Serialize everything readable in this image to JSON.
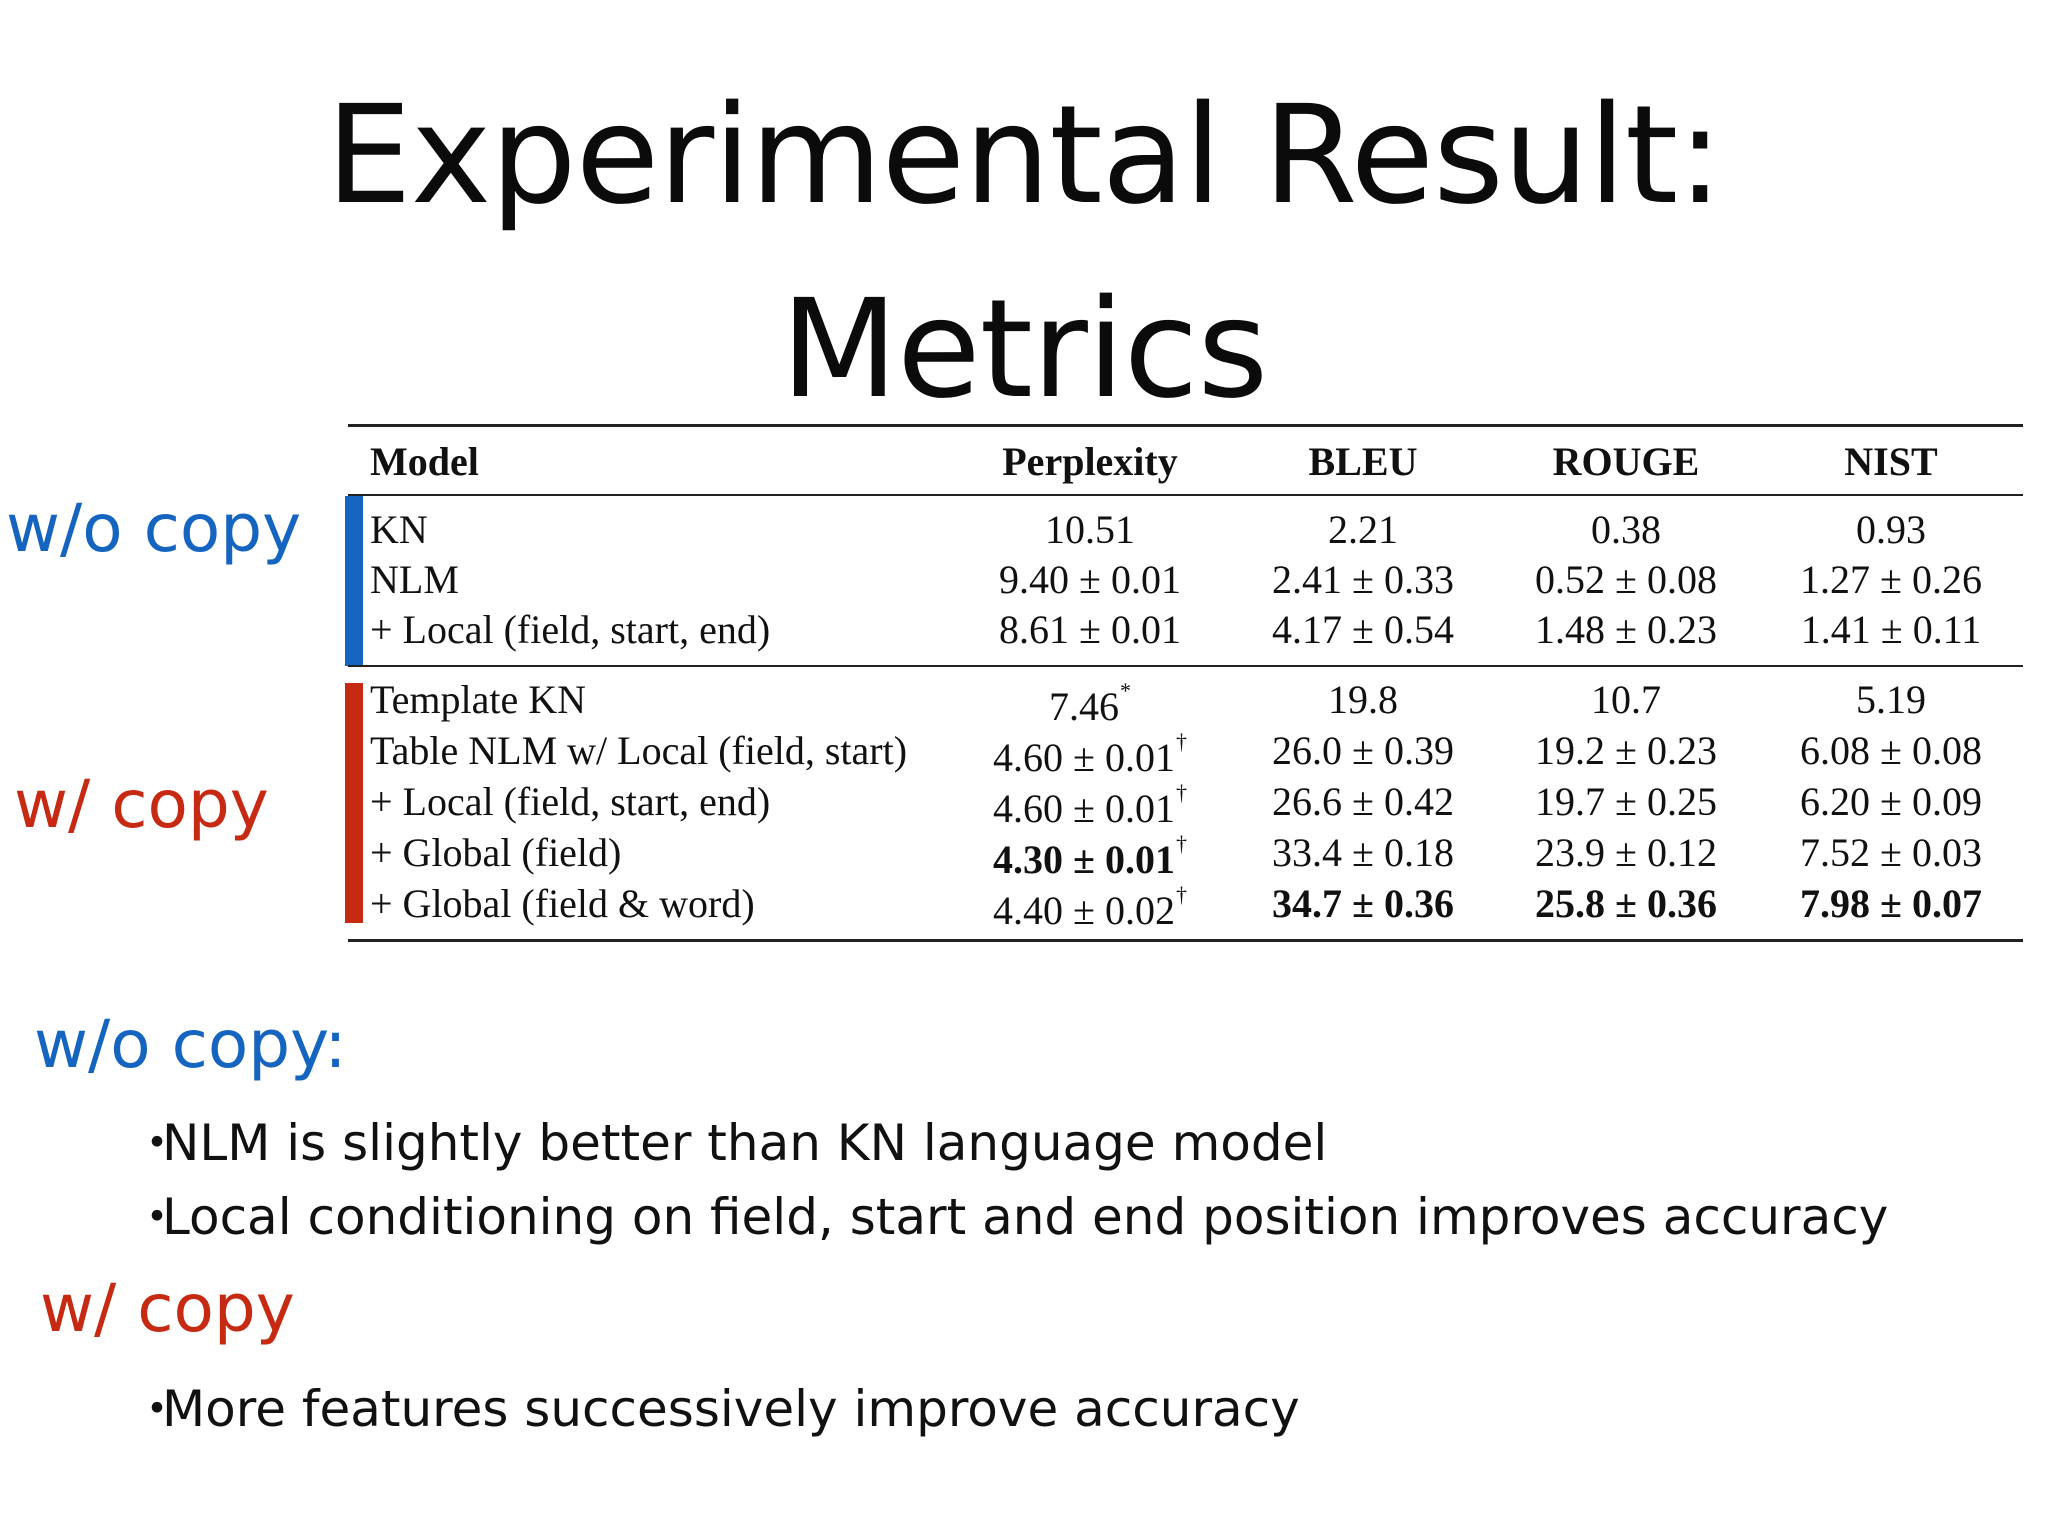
{
  "colors": {
    "blue": "#1565c0",
    "red": "#c62a12"
  },
  "title": {
    "line1": "Experimental Result:",
    "line2": "Metrics"
  },
  "labels": {
    "without_copy": "w/o copy",
    "with_copy": "w/ copy"
  },
  "table": {
    "headers": [
      "Model",
      "Perplexity",
      "BLEU",
      "ROUGE",
      "NIST"
    ],
    "groups": [
      {
        "group": "w/o copy",
        "rows": [
          {
            "model": "KN",
            "perplexity": "10.51",
            "bleu": "2.21",
            "rouge": "0.38",
            "nist": "0.93"
          },
          {
            "model": "NLM",
            "perplexity": "9.40 ± 0.01",
            "bleu": "2.41 ± 0.33",
            "rouge": "0.52 ± 0.08",
            "nist": "1.27 ± 0.26"
          },
          {
            "model": "+ Local (field, start, end)",
            "perplexity": "8.61 ± 0.01",
            "bleu": "4.17 ± 0.54",
            "rouge": "1.48 ± 0.23",
            "nist": "1.41 ± 0.11"
          }
        ]
      },
      {
        "group": "w/ copy",
        "rows": [
          {
            "model": "Template KN",
            "perplexity": "7.46",
            "perplexity_mark": "*",
            "bleu": "19.8",
            "rouge": "10.7",
            "nist": "5.19"
          },
          {
            "model": "Table NLM w/ Local (field, start)",
            "perplexity": "4.60 ± 0.01",
            "perplexity_mark": "†",
            "bleu": "26.0 ± 0.39",
            "rouge": "19.2 ± 0.23",
            "nist": "6.08 ± 0.08"
          },
          {
            "model": "+ Local (field, start, end)",
            "perplexity": "4.60 ± 0.01",
            "perplexity_mark": "†",
            "bleu": "26.6 ± 0.42",
            "rouge": "19.7 ± 0.25",
            "nist": "6.20 ± 0.09"
          },
          {
            "model": "+ Global (field)",
            "perplexity": "4.30 ± 0.01",
            "perplexity_mark": "†",
            "perplexity_bold": true,
            "bleu": "33.4 ± 0.18",
            "rouge": "23.9 ± 0.12",
            "nist": "7.52 ± 0.03"
          },
          {
            "model": "+ Global (field & word)",
            "perplexity": "4.40 ± 0.02",
            "perplexity_mark": "†",
            "bleu": "34.7 ± 0.36",
            "bleu_bold": true,
            "rouge": "25.8 ± 0.36",
            "rouge_bold": true,
            "nist": "7.98 ± 0.07",
            "nist_bold": true
          }
        ]
      }
    ]
  },
  "notes": {
    "without_copy_heading": "w/o copy:",
    "without_copy_points": [
      "NLM is slightly better than KN language model",
      "Local conditioning on field, start and end position improves accuracy"
    ],
    "with_copy_heading": "w/ copy",
    "with_copy_points": [
      "More features successively improve accuracy"
    ],
    "bullet_char": "・"
  }
}
